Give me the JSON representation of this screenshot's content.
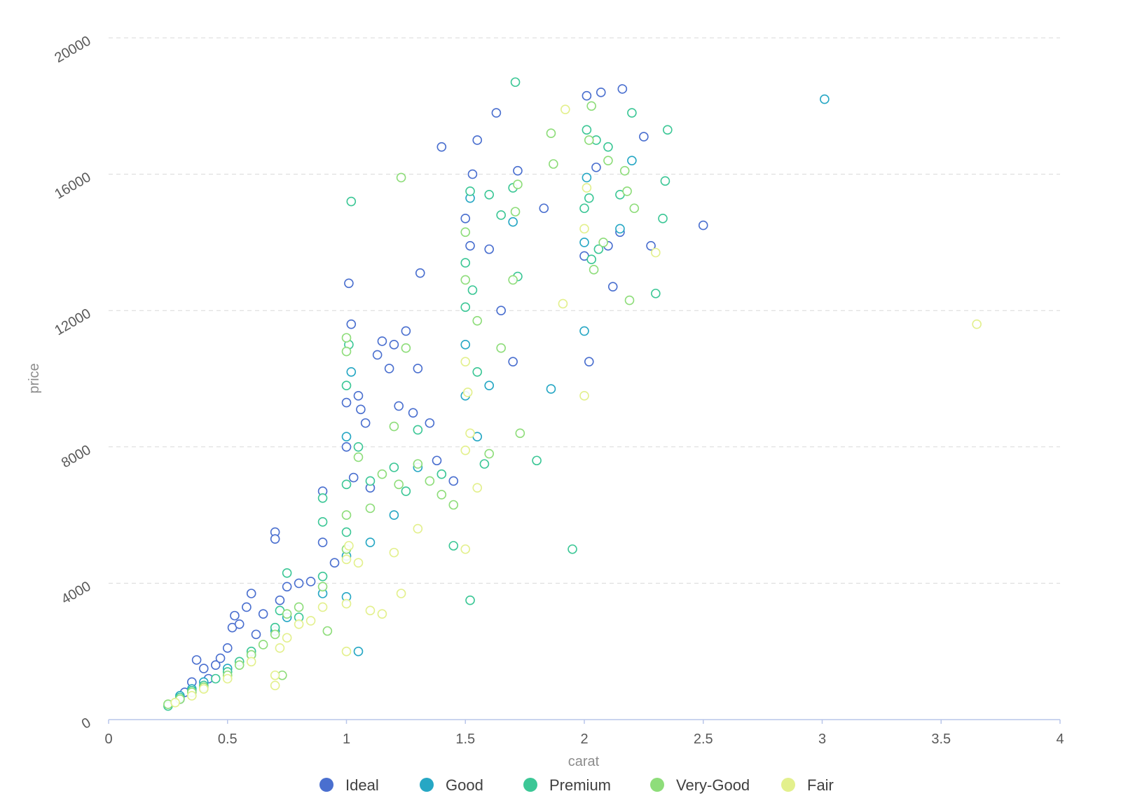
{
  "chart_data": {
    "type": "scatter",
    "title": "",
    "xlabel": "carat",
    "ylabel": "price",
    "xlim": [
      0,
      4
    ],
    "ylim": [
      0,
      20000
    ],
    "x_ticks": [
      "0",
      "0.5",
      "1",
      "1.5",
      "2",
      "2.5",
      "3",
      "3.5",
      "4"
    ],
    "y_ticks": [
      "0",
      "4000",
      "8000",
      "12000",
      "16000",
      "20000"
    ],
    "grid": "horizontal dashed",
    "legend_position": "bottom",
    "marker": "hollow circle",
    "series": [
      {
        "name": "Ideal",
        "color": "#4a6fcf",
        "points": [
          [
            0.3,
            600
          ],
          [
            0.32,
            800
          ],
          [
            0.35,
            1100
          ],
          [
            0.37,
            1750
          ],
          [
            0.4,
            1500
          ],
          [
            0.42,
            1200
          ],
          [
            0.45,
            1600
          ],
          [
            0.47,
            1800
          ],
          [
            0.5,
            2100
          ],
          [
            0.52,
            2700
          ],
          [
            0.53,
            3050
          ],
          [
            0.55,
            2800
          ],
          [
            0.58,
            3300
          ],
          [
            0.6,
            3700
          ],
          [
            0.62,
            2500
          ],
          [
            0.65,
            3100
          ],
          [
            0.7,
            5500
          ],
          [
            0.7,
            5300
          ],
          [
            0.72,
            3500
          ],
          [
            0.75,
            3900
          ],
          [
            0.8,
            4000
          ],
          [
            0.85,
            4050
          ],
          [
            0.9,
            6700
          ],
          [
            0.9,
            5200
          ],
          [
            0.95,
            4600
          ],
          [
            1.0,
            9300
          ],
          [
            1.0,
            8000
          ],
          [
            1.01,
            12800
          ],
          [
            1.02,
            11600
          ],
          [
            1.03,
            7100
          ],
          [
            1.05,
            9500
          ],
          [
            1.06,
            9100
          ],
          [
            1.08,
            8700
          ],
          [
            1.1,
            6800
          ],
          [
            1.13,
            10700
          ],
          [
            1.15,
            11100
          ],
          [
            1.18,
            10300
          ],
          [
            1.2,
            11000
          ],
          [
            1.22,
            9200
          ],
          [
            1.25,
            11400
          ],
          [
            1.28,
            9000
          ],
          [
            1.3,
            10300
          ],
          [
            1.31,
            13100
          ],
          [
            1.35,
            8700
          ],
          [
            1.38,
            7600
          ],
          [
            1.4,
            16800
          ],
          [
            1.45,
            7000
          ],
          [
            1.5,
            14700
          ],
          [
            1.52,
            13900
          ],
          [
            1.53,
            16000
          ],
          [
            1.55,
            17000
          ],
          [
            1.6,
            13800
          ],
          [
            1.63,
            17800
          ],
          [
            1.65,
            12000
          ],
          [
            1.7,
            10500
          ],
          [
            1.72,
            16100
          ],
          [
            1.83,
            15000
          ],
          [
            2.0,
            13600
          ],
          [
            2.01,
            18300
          ],
          [
            2.02,
            10500
          ],
          [
            2.05,
            16200
          ],
          [
            2.07,
            18400
          ],
          [
            2.1,
            13900
          ],
          [
            2.12,
            12700
          ],
          [
            2.15,
            14300
          ],
          [
            2.16,
            18500
          ],
          [
            2.25,
            17100
          ],
          [
            2.28,
            13900
          ],
          [
            2.5,
            14500
          ]
        ]
      },
      {
        "name": "Good",
        "color": "#26a7c4",
        "points": [
          [
            0.3,
            700
          ],
          [
            0.35,
            900
          ],
          [
            0.4,
            1100
          ],
          [
            0.5,
            1500
          ],
          [
            0.6,
            1900
          ],
          [
            0.7,
            2600
          ],
          [
            0.75,
            3000
          ],
          [
            0.9,
            3700
          ],
          [
            1.0,
            3600
          ],
          [
            1.0,
            4800
          ],
          [
            1.0,
            8300
          ],
          [
            1.02,
            10200
          ],
          [
            1.05,
            2000
          ],
          [
            1.1,
            5200
          ],
          [
            1.2,
            6000
          ],
          [
            1.3,
            7400
          ],
          [
            1.5,
            9500
          ],
          [
            1.5,
            11000
          ],
          [
            1.52,
            15300
          ],
          [
            1.55,
            8300
          ],
          [
            1.6,
            9800
          ],
          [
            1.7,
            14600
          ],
          [
            1.86,
            9700
          ],
          [
            2.0,
            11400
          ],
          [
            2.0,
            14000
          ],
          [
            2.01,
            15900
          ],
          [
            2.15,
            14400
          ],
          [
            2.2,
            16400
          ],
          [
            3.01,
            18200
          ]
        ]
      },
      {
        "name": "Premium",
        "color": "#3cc796",
        "points": [
          [
            0.25,
            400
          ],
          [
            0.3,
            650
          ],
          [
            0.35,
            850
          ],
          [
            0.4,
            1000
          ],
          [
            0.45,
            1200
          ],
          [
            0.5,
            1400
          ],
          [
            0.55,
            1700
          ],
          [
            0.6,
            2000
          ],
          [
            0.7,
            2700
          ],
          [
            0.72,
            3200
          ],
          [
            0.75,
            4300
          ],
          [
            0.8,
            3000
          ],
          [
            0.9,
            4200
          ],
          [
            0.9,
            5800
          ],
          [
            0.9,
            6500
          ],
          [
            1.0,
            5500
          ],
          [
            1.0,
            6900
          ],
          [
            1.0,
            9800
          ],
          [
            1.01,
            11000
          ],
          [
            1.02,
            15200
          ],
          [
            1.05,
            8000
          ],
          [
            1.1,
            7000
          ],
          [
            1.2,
            7400
          ],
          [
            1.25,
            6700
          ],
          [
            1.3,
            8500
          ],
          [
            1.4,
            7200
          ],
          [
            1.45,
            5100
          ],
          [
            1.5,
            12100
          ],
          [
            1.5,
            13400
          ],
          [
            1.52,
            15500
          ],
          [
            1.53,
            12600
          ],
          [
            1.55,
            10200
          ],
          [
            1.58,
            7500
          ],
          [
            1.6,
            15400
          ],
          [
            1.65,
            14800
          ],
          [
            1.7,
            15600
          ],
          [
            1.71,
            18700
          ],
          [
            1.72,
            13000
          ],
          [
            1.8,
            7600
          ],
          [
            1.95,
            5000
          ],
          [
            2.0,
            15000
          ],
          [
            2.01,
            17300
          ],
          [
            2.02,
            15300
          ],
          [
            2.03,
            13500
          ],
          [
            2.05,
            17000
          ],
          [
            2.06,
            13800
          ],
          [
            2.1,
            16800
          ],
          [
            2.15,
            15400
          ],
          [
            2.2,
            17800
          ],
          [
            2.3,
            12500
          ],
          [
            2.33,
            14700
          ],
          [
            2.35,
            17300
          ],
          [
            2.34,
            15800
          ],
          [
            1.52,
            3500
          ]
        ]
      },
      {
        "name": "Very-Good",
        "color": "#8edd7a",
        "points": [
          [
            0.25,
            450
          ],
          [
            0.3,
            600
          ],
          [
            0.35,
            800
          ],
          [
            0.4,
            950
          ],
          [
            0.5,
            1300
          ],
          [
            0.55,
            1600
          ],
          [
            0.6,
            1900
          ],
          [
            0.65,
            2200
          ],
          [
            0.7,
            2500
          ],
          [
            0.73,
            1300
          ],
          [
            0.75,
            3100
          ],
          [
            0.8,
            3300
          ],
          [
            0.9,
            3900
          ],
          [
            0.92,
            2600
          ],
          [
            1.0,
            5000
          ],
          [
            1.0,
            6000
          ],
          [
            1.0,
            11200
          ],
          [
            1.0,
            10800
          ],
          [
            1.05,
            7700
          ],
          [
            1.1,
            6200
          ],
          [
            1.15,
            7200
          ],
          [
            1.2,
            8600
          ],
          [
            1.22,
            6900
          ],
          [
            1.23,
            15900
          ],
          [
            1.25,
            10900
          ],
          [
            1.3,
            7500
          ],
          [
            1.35,
            7000
          ],
          [
            1.4,
            6600
          ],
          [
            1.45,
            6300
          ],
          [
            1.5,
            14300
          ],
          [
            1.5,
            12900
          ],
          [
            1.55,
            11700
          ],
          [
            1.6,
            7800
          ],
          [
            1.65,
            10900
          ],
          [
            1.7,
            12900
          ],
          [
            1.71,
            14900
          ],
          [
            1.72,
            15700
          ],
          [
            1.73,
            8400
          ],
          [
            1.87,
            16300
          ],
          [
            1.86,
            17200
          ],
          [
            2.02,
            17000
          ],
          [
            2.03,
            18000
          ],
          [
            2.04,
            13200
          ],
          [
            2.08,
            14000
          ],
          [
            2.1,
            16400
          ],
          [
            2.17,
            16100
          ],
          [
            2.19,
            12300
          ],
          [
            2.21,
            15000
          ],
          [
            2.18,
            15500
          ]
        ]
      },
      {
        "name": "Fair",
        "color": "#e3f08d",
        "points": [
          [
            0.28,
            500
          ],
          [
            0.35,
            700
          ],
          [
            0.4,
            900
          ],
          [
            0.5,
            1200
          ],
          [
            0.6,
            1700
          ],
          [
            0.7,
            1000
          ],
          [
            0.7,
            1300
          ],
          [
            0.72,
            2100
          ],
          [
            0.75,
            2400
          ],
          [
            0.8,
            2800
          ],
          [
            0.85,
            2900
          ],
          [
            0.9,
            3300
          ],
          [
            1.0,
            2000
          ],
          [
            1.0,
            3400
          ],
          [
            1.0,
            4700
          ],
          [
            1.01,
            5100
          ],
          [
            1.05,
            4600
          ],
          [
            1.1,
            3200
          ],
          [
            1.15,
            3100
          ],
          [
            1.2,
            4900
          ],
          [
            1.23,
            3700
          ],
          [
            1.3,
            5600
          ],
          [
            1.5,
            5000
          ],
          [
            1.5,
            7900
          ],
          [
            1.52,
            8400
          ],
          [
            1.55,
            6800
          ],
          [
            1.5,
            10500
          ],
          [
            1.51,
            9600
          ],
          [
            1.92,
            17900
          ],
          [
            1.91,
            12200
          ],
          [
            2.0,
            14400
          ],
          [
            2.01,
            15600
          ],
          [
            2.0,
            9500
          ],
          [
            2.3,
            13700
          ],
          [
            3.65,
            11600
          ]
        ]
      }
    ]
  }
}
